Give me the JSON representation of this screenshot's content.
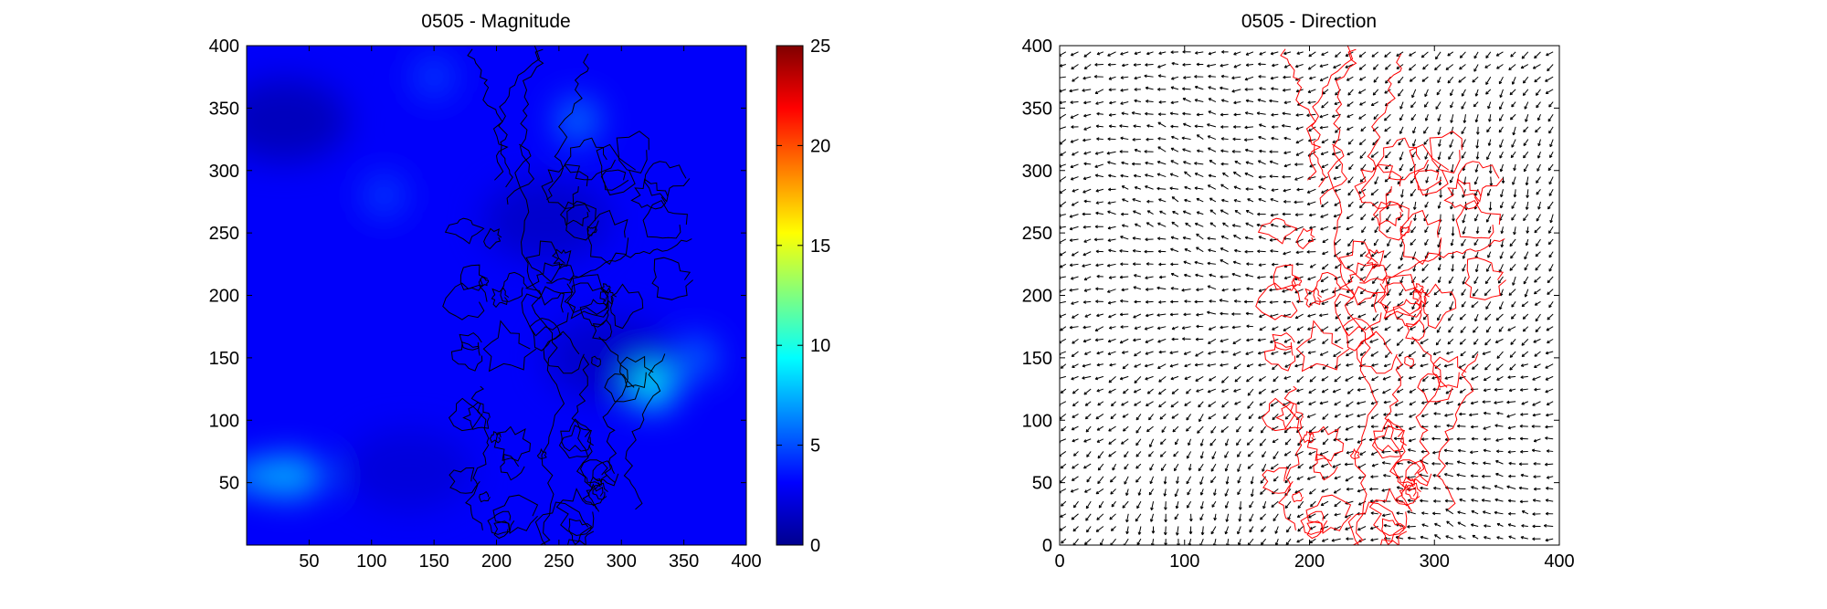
{
  "chart_data": [
    {
      "type": "heatmap",
      "title": "0505 -  Magnitude",
      "xlabel": "",
      "ylabel": "",
      "xlim": [
        0,
        400
      ],
      "ylim": [
        0,
        400
      ],
      "x_ticks": [
        50,
        100,
        150,
        200,
        250,
        300,
        350,
        400
      ],
      "y_ticks": [
        50,
        100,
        150,
        200,
        250,
        300,
        350,
        400
      ],
      "colorbar": {
        "colormap": "jet",
        "range": [
          0,
          25
        ],
        "ticks": [
          0,
          5,
          10,
          15,
          20,
          25
        ]
      },
      "field_hotspots": [
        {
          "x": 325,
          "y": 127,
          "value": 9.5
        },
        {
          "x": 35,
          "y": 55,
          "value": 7.5
        },
        {
          "x": 265,
          "y": 340,
          "value": 6
        },
        {
          "x": 360,
          "y": 150,
          "value": 5.5
        },
        {
          "x": 150,
          "y": 375,
          "value": 4.5
        },
        {
          "x": 110,
          "y": 280,
          "value": 4.5
        }
      ],
      "field_background_value": 3,
      "field_low_regions": [
        {
          "x": 30,
          "y": 340,
          "value": 1
        },
        {
          "x": 240,
          "y": 260,
          "value": 1.5
        },
        {
          "x": 290,
          "y": 150,
          "value": 1.5
        },
        {
          "x": 130,
          "y": 60,
          "value": 2
        }
      ],
      "contour_color": "#000000",
      "grid": false
    },
    {
      "type": "quiver",
      "title": "0505 -  Direction",
      "xlabel": "",
      "ylabel": "",
      "xlim": [
        0,
        400
      ],
      "ylim": [
        0,
        400
      ],
      "x_ticks": [
        0,
        100,
        200,
        300,
        400
      ],
      "y_ticks": [
        0,
        50,
        100,
        150,
        200,
        250,
        300,
        350,
        400
      ],
      "arrow_spacing": 10,
      "arrow_color": "#000000",
      "contour_color": "#ff0000",
      "grid": false
    }
  ]
}
